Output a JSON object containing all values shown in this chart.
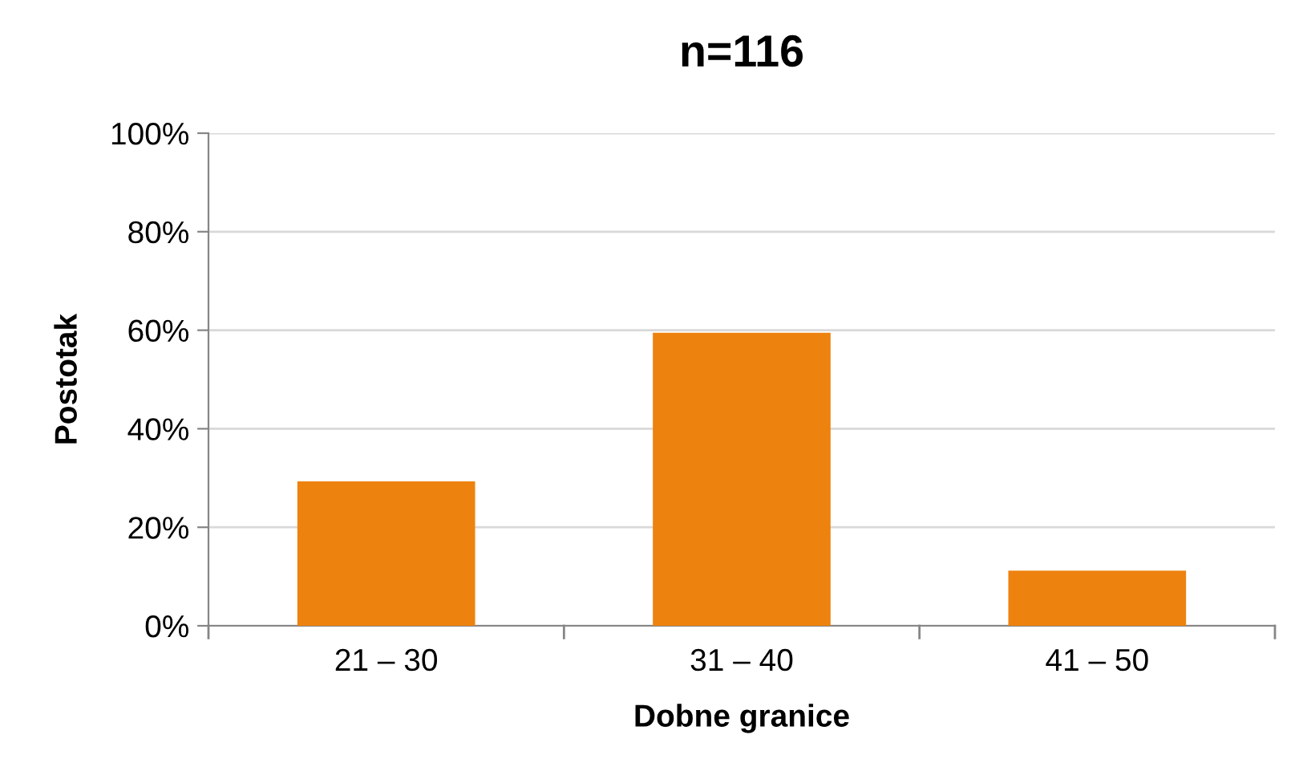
{
  "chart_data": {
    "type": "bar",
    "title": "n=116",
    "xlabel": "Dobne granice",
    "ylabel": "Postotak",
    "categories": [
      "21 – 30",
      "31 – 40",
      "41 – 50"
    ],
    "values": [
      29.3,
      59.5,
      11.2
    ],
    "color": "#ee820f",
    "ylim": [
      0,
      100
    ],
    "yticks": [
      {
        "value": 0,
        "label": "0%"
      },
      {
        "value": 20,
        "label": "20%"
      },
      {
        "value": 40,
        "label": "40%"
      },
      {
        "value": 60,
        "label": "60%"
      },
      {
        "value": 80,
        "label": "80%"
      },
      {
        "value": 100,
        "label": "100%"
      }
    ],
    "grid": "y",
    "legend": false
  }
}
